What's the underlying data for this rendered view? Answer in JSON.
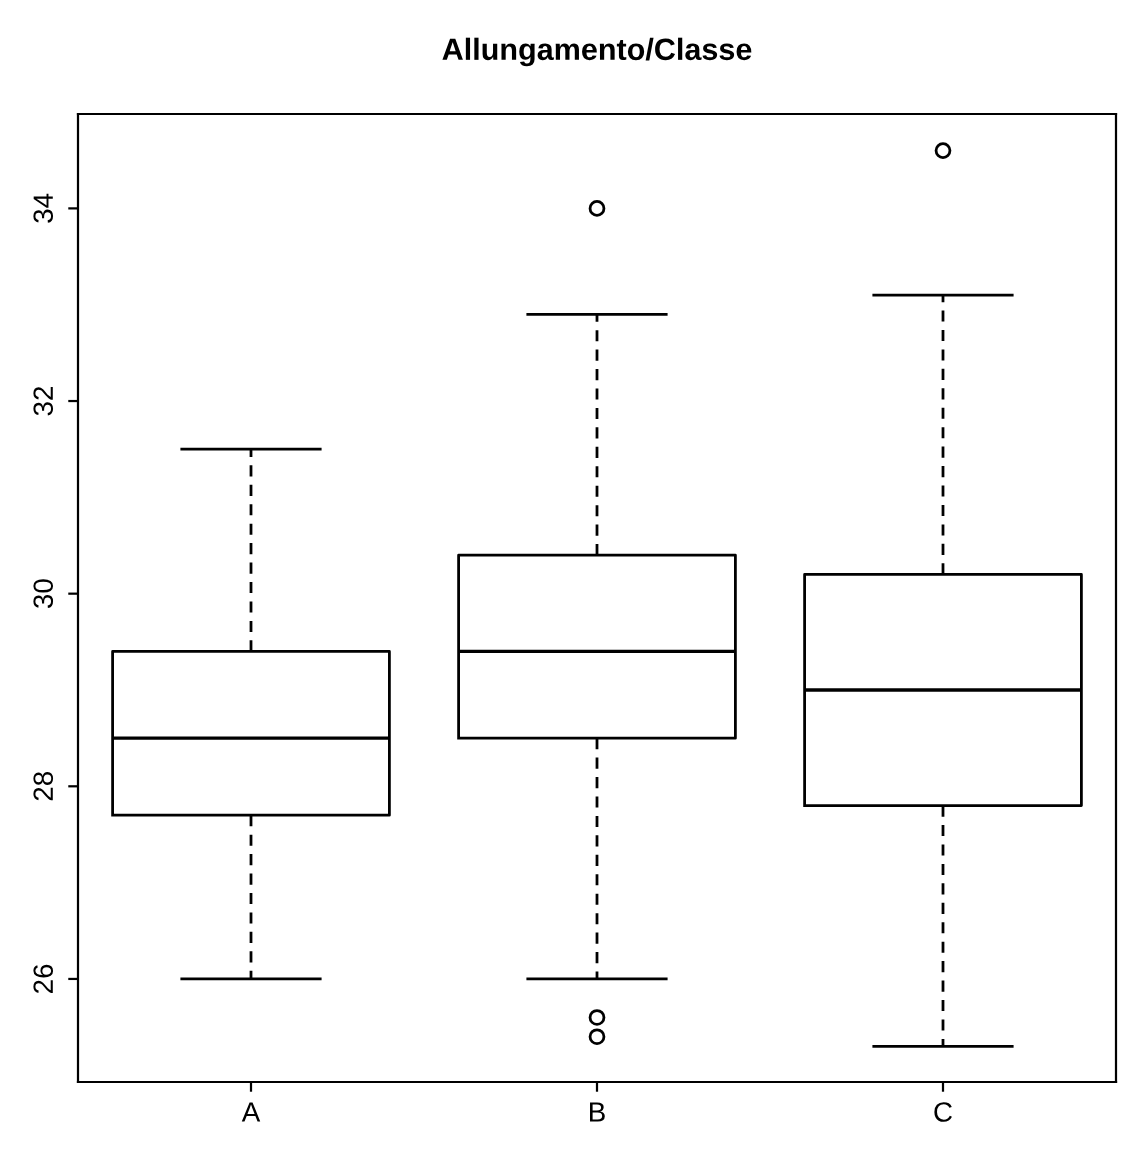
{
  "chart_data": {
    "type": "box",
    "title": "Allungamento/Classe",
    "categories": [
      "A",
      "B",
      "C"
    ],
    "boxes": [
      {
        "low": 26.0,
        "q1": 27.7,
        "median": 28.5,
        "q3": 29.4,
        "high": 31.5
      },
      {
        "low": 26.0,
        "q1": 28.5,
        "median": 29.4,
        "q3": 30.4,
        "high": 32.9,
        "outliers": [
          34.0,
          25.6,
          25.4
        ]
      },
      {
        "low": 25.3,
        "q1": 27.8,
        "median": 29.0,
        "q3": 30.2,
        "high": 33.1,
        "outliers": [
          34.6
        ]
      }
    ],
    "ylim": [
      24.93,
      34.98
    ],
    "yticks": [
      26,
      28,
      30,
      32,
      34
    ],
    "grid": false,
    "legend": false
  }
}
